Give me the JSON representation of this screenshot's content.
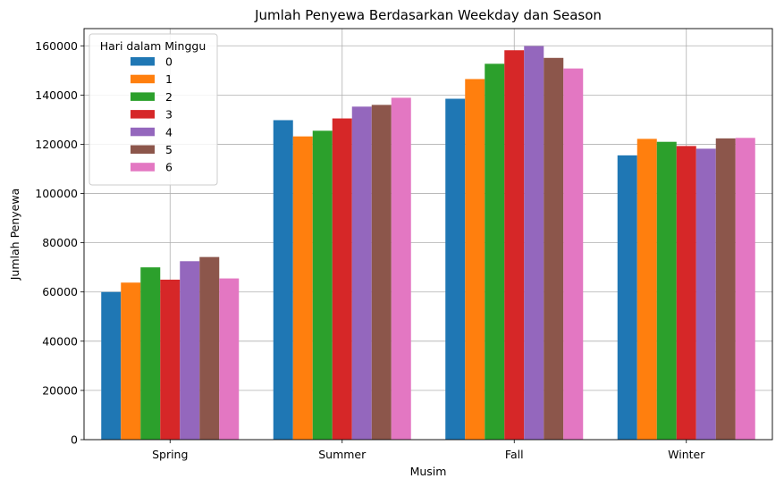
{
  "chart_data": {
    "type": "bar",
    "title": "Jumlah Penyewa Berdasarkan Weekday dan Season",
    "xlabel": "Musim",
    "ylabel": "Jumlah Penyewa",
    "categories": [
      "Spring",
      "Summer",
      "Fall",
      "Winter"
    ],
    "ylim": [
      0,
      167000
    ],
    "yticks": [
      0,
      20000,
      40000,
      60000,
      80000,
      100000,
      120000,
      140000,
      160000
    ],
    "grid": true,
    "legend": {
      "title": "Hari dalam Minggu",
      "placement": "top-left"
    },
    "series": [
      {
        "name": "0",
        "color": "#1f77b4",
        "values": [
          60000,
          129800,
          138500,
          115500
        ]
      },
      {
        "name": "1",
        "color": "#ff7f0e",
        "values": [
          63800,
          123200,
          146500,
          122200
        ]
      },
      {
        "name": "2",
        "color": "#2ca02c",
        "values": [
          70000,
          125500,
          152700,
          121000
        ]
      },
      {
        "name": "3",
        "color": "#d62728",
        "values": [
          65000,
          130500,
          158200,
          119300
        ]
      },
      {
        "name": "4",
        "color": "#9467bd",
        "values": [
          72500,
          135300,
          159900,
          118200
        ]
      },
      {
        "name": "5",
        "color": "#8c564b",
        "values": [
          74200,
          136000,
          155100,
          122400
        ]
      },
      {
        "name": "6",
        "color": "#e377c2",
        "values": [
          65500,
          138900,
          150800,
          122600
        ]
      }
    ]
  }
}
